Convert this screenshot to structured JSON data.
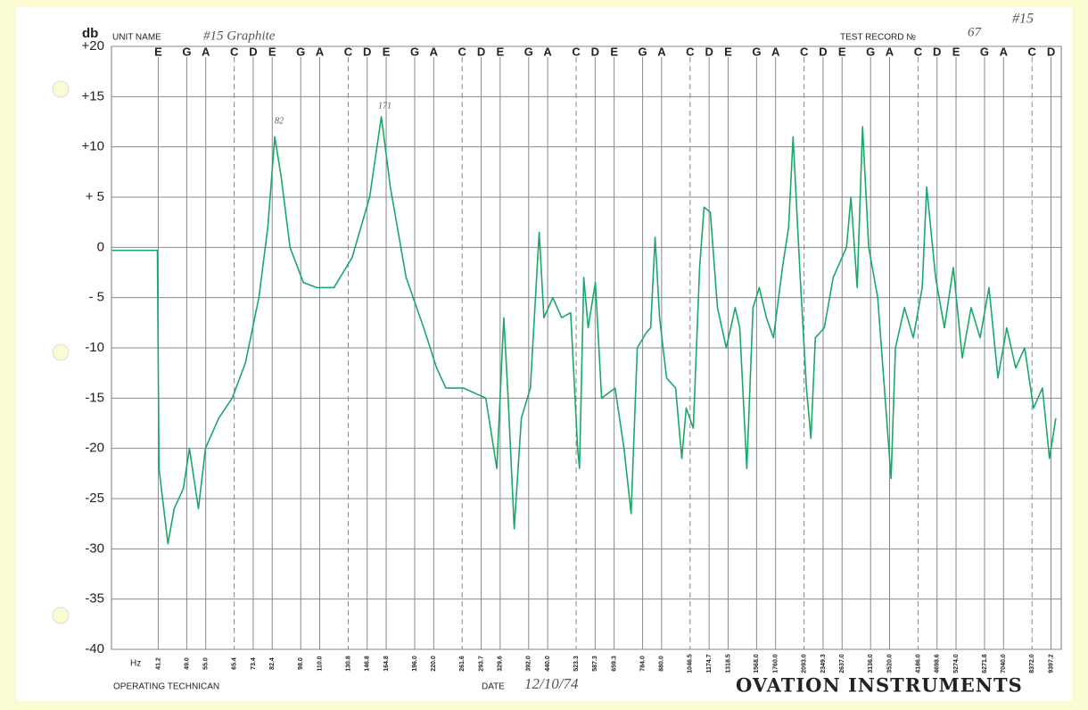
{
  "chart_data": {
    "type": "line",
    "unit_name_label": "UNIT NAME",
    "unit_name": "#15 Graphite",
    "test_record_label": "TEST RECORD №",
    "test_record": "67",
    "sheet_number": "#15",
    "ylabel": "db",
    "xlabel": "Hz",
    "operator_label": "OPERATING TECHNICAN",
    "date_label": "DATE",
    "date": "12/10/74",
    "brand": "OVATION INSTRUMENTS",
    "annotations": [
      "82",
      "171"
    ],
    "log_x": true,
    "grid": true,
    "color": "#1aa86a",
    "xlim": [
      31,
      10000
    ],
    "ylim": [
      -40,
      20
    ],
    "yticks": [
      {
        "value": 20,
        "label": "+20"
      },
      {
        "value": 15,
        "label": "+15"
      },
      {
        "value": 10,
        "label": "+10"
      },
      {
        "value": 5,
        "label": "+ 5"
      },
      0,
      {
        "value": -5,
        "label": "- 5"
      },
      -10,
      -15,
      -20,
      -25,
      -30,
      -35,
      -40
    ],
    "xticks": [
      41.2,
      {
        "value": 49,
        "label": "49.0"
      },
      {
        "value": 55,
        "label": "55.0"
      },
      65.4,
      73.4,
      82.4,
      {
        "value": 98,
        "label": "98.0"
      },
      {
        "value": 110,
        "label": "110.0"
      },
      130.8,
      146.8,
      164.8,
      {
        "value": 196,
        "label": "196.0"
      },
      {
        "value": 220,
        "label": "220.0"
      },
      261.6,
      293.7,
      329.6,
      {
        "value": 392,
        "label": "392.0"
      },
      {
        "value": 440,
        "label": "440.0"
      },
      523.3,
      587.3,
      659.3,
      {
        "value": 784,
        "label": "784.0"
      },
      {
        "value": 880,
        "label": "880.0"
      },
      1046.5,
      1174.7,
      1318.5,
      {
        "value": 1568,
        "label": "1568.0"
      },
      {
        "value": 1760,
        "label": "1760.0"
      },
      {
        "value": 2093,
        "label": "2093.0"
      },
      2349.3,
      {
        "value": 2637,
        "label": "2637.0"
      },
      {
        "value": 3136,
        "label": "3136.0"
      },
      {
        "value": 3520,
        "label": "3520.0"
      },
      {
        "value": 4186,
        "label": "4186.0"
      },
      4698.6,
      {
        "value": 5274,
        "label": "5274.0"
      },
      6271.8,
      {
        "value": 7040,
        "label": "7040.0"
      },
      {
        "value": 8372,
        "label": "8372.0"
      },
      9397.2
    ],
    "notes": [
      "E",
      "G",
      "A",
      "C",
      "D",
      "E",
      "G",
      "A",
      "C",
      "D",
      "E",
      "G",
      "A",
      "C",
      "D",
      "E",
      "G",
      "A",
      "C",
      "D",
      "E",
      "G",
      "A",
      "C",
      "D",
      "E",
      "G",
      "A",
      "C",
      "D",
      "E",
      "G",
      "A",
      "C",
      "D",
      "E",
      "G",
      "A",
      "C",
      "D"
    ],
    "x": [
      31.1,
      41,
      41.4,
      42.3,
      43.7,
      45.4,
      48,
      49.8,
      52.6,
      54.9,
      59.5,
      64.6,
      70,
      76,
      80.2,
      83.7,
      87,
      91.8,
      99.6,
      108,
      120,
      134,
      149,
      160,
      169,
      186,
      207,
      224,
      237,
      264,
      302,
      323,
      337,
      346,
      359,
      375,
      396,
      418,
      430,
      454,
      479,
      506,
      528,
      534,
      548,
      563,
      588,
      611,
      663,
      700,
      731,
      759,
      801,
      823,
      846,
      869,
      907,
      958,
      995,
      1022,
      1067,
      1109,
      1139,
      1183,
      1236,
      1304,
      1377,
      1415,
      1477,
      1534,
      1594,
      1664,
      1737,
      1835,
      1905,
      1957,
      2044,
      2123,
      2182,
      2242,
      2367,
      2498,
      2637,
      2709,
      2783,
      2891,
      2987,
      3101,
      3275,
      3457,
      3553,
      3649,
      3853,
      4067,
      4293,
      4411,
      4656,
      4915,
      5187,
      5476,
      5780,
      6104,
      6444,
      6803,
      7181,
      7581,
      8004,
      8450,
      8920,
      9310,
      9675
    ],
    "values": [
      -0.3,
      -0.3,
      -22,
      -25,
      -29.5,
      -26,
      -24,
      -20,
      -26,
      -20,
      -17,
      -15,
      -11.5,
      -5,
      2,
      11,
      7,
      0,
      -3.5,
      -4,
      -4,
      -1,
      5,
      13,
      6,
      -3,
      -8,
      -12,
      -14,
      -14,
      -15,
      -22,
      -7,
      -15,
      -28,
      -17,
      -14,
      1.5,
      -7,
      -5,
      -7,
      -6.5,
      -20,
      -22,
      -3,
      -8,
      -3.5,
      -15,
      -14,
      -20,
      -26.5,
      -10,
      -8.5,
      -8,
      1,
      -7,
      -13,
      -14,
      -21,
      -16,
      -18,
      -2,
      4,
      3.5,
      -6,
      -10,
      -6,
      -8,
      -22,
      -6,
      -4,
      -7,
      -9,
      -2,
      2,
      11,
      -3,
      -14,
      -19,
      -9,
      -8,
      -3,
      -1,
      0,
      5,
      -4,
      12,
      0,
      -5,
      -17,
      -23,
      -10,
      -6,
      -9,
      -4,
      6,
      -3,
      -8,
      -2,
      -11,
      -6,
      -9,
      -4,
      -13,
      -8,
      -12,
      -10,
      -16,
      -14,
      -21,
      -17
    ]
  }
}
